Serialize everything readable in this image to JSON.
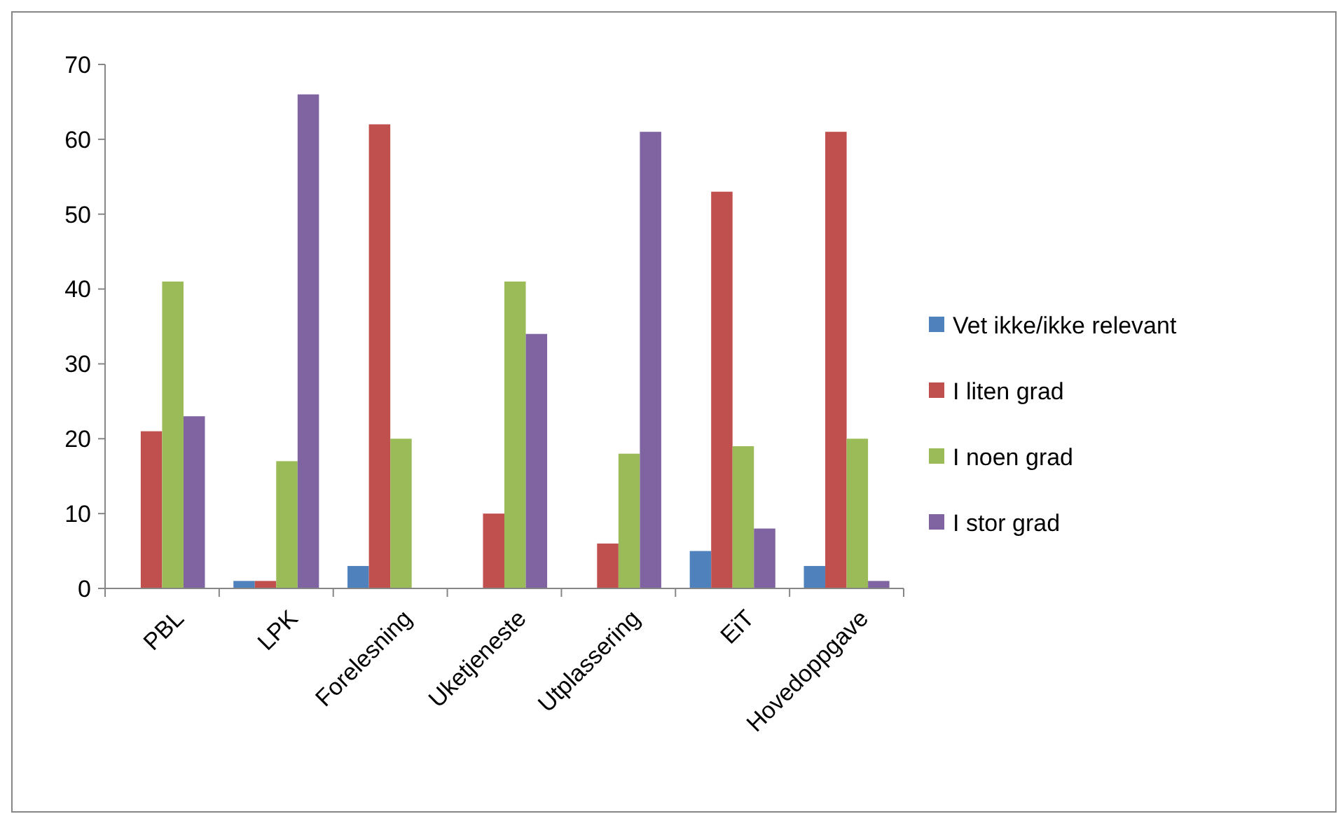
{
  "chart_data": {
    "type": "bar",
    "categories": [
      "PBL",
      "LPK",
      "Forelesning",
      "Uketjeneste",
      "Utplassering",
      "EiT",
      "Hovedoppgave"
    ],
    "series": [
      {
        "name": "Vet ikke/ikke relevant",
        "color": "#4f81bd",
        "values": [
          0,
          1,
          3,
          0,
          0,
          5,
          3
        ]
      },
      {
        "name": "I liten grad",
        "color": "#c0504d",
        "values": [
          21,
          1,
          62,
          10,
          6,
          53,
          61
        ]
      },
      {
        "name": "I noen grad",
        "color": "#9bbb59",
        "values": [
          41,
          17,
          20,
          41,
          18,
          19,
          20
        ]
      },
      {
        "name": "I stor grad",
        "color": "#8064a2",
        "values": [
          23,
          66,
          0,
          34,
          61,
          8,
          1
        ]
      }
    ],
    "ylim": [
      0,
      70
    ],
    "yticks": [
      0,
      10,
      20,
      30,
      40,
      50,
      60,
      70
    ],
    "grid": false,
    "legend": "right"
  }
}
